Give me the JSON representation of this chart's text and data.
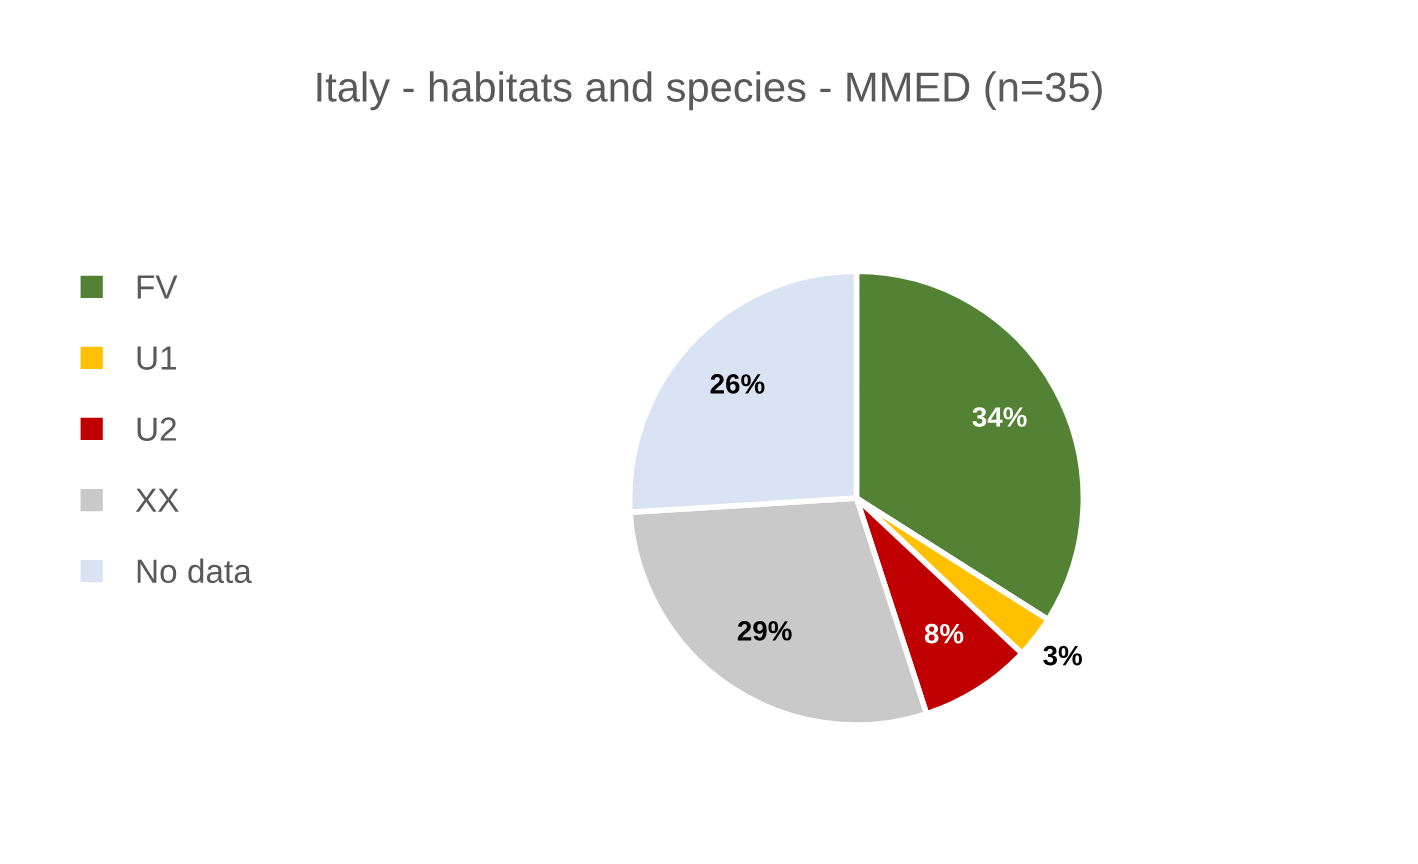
{
  "chart_data": {
    "type": "pie",
    "title": "Italy - habitats and species - MMED (n=35)",
    "categories": [
      "FV",
      "U1",
      "U2",
      "XX",
      "No data"
    ],
    "values": [
      34,
      3,
      8,
      29,
      26
    ],
    "colors": [
      "#548235",
      "#ffc000",
      "#c00000",
      "#c9c9c9",
      "#dae3f3"
    ],
    "value_labels": [
      "34%",
      "3%",
      "8%",
      "29%",
      "26%"
    ],
    "legend": "left"
  }
}
